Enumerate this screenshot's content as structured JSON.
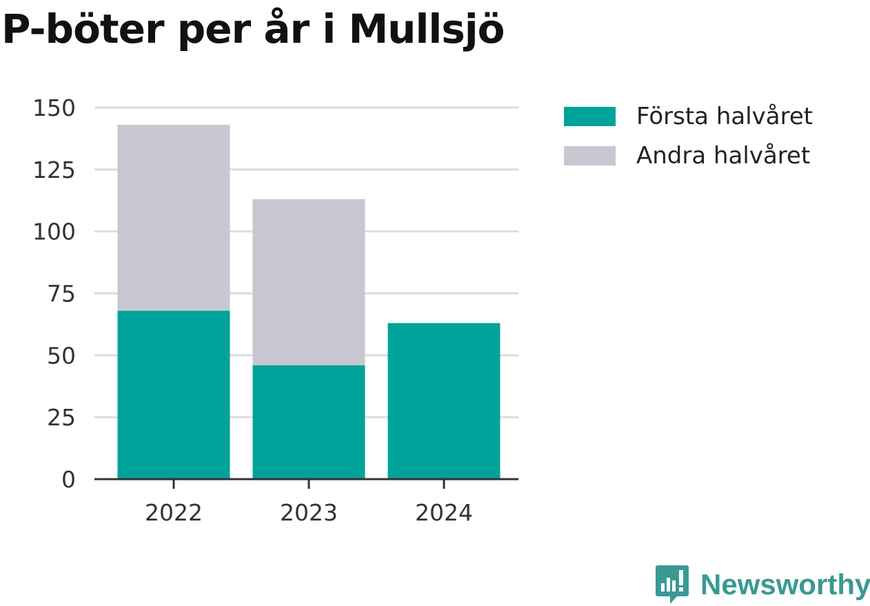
{
  "chart_data": {
    "type": "bar",
    "stacked": true,
    "title": "P-böter per år i Mullsjö",
    "categories": [
      "2022",
      "2023",
      "2024"
    ],
    "series": [
      {
        "name": "Första halvåret",
        "values": [
          68,
          46,
          63
        ],
        "color": "#00a39a"
      },
      {
        "name": "Andra halvåret",
        "values": [
          75,
          67,
          0
        ],
        "color": "#c8c7d1"
      }
    ],
    "y_ticks": [
      0,
      25,
      50,
      75,
      100,
      125,
      150
    ],
    "ylim": [
      0,
      150
    ],
    "grid": true,
    "legend_position": "top-right",
    "xlabel": "",
    "ylabel": ""
  },
  "brand": {
    "name": "Newsworthy",
    "icon": "newsworthy-logo-icon",
    "color": "#3a9993"
  }
}
